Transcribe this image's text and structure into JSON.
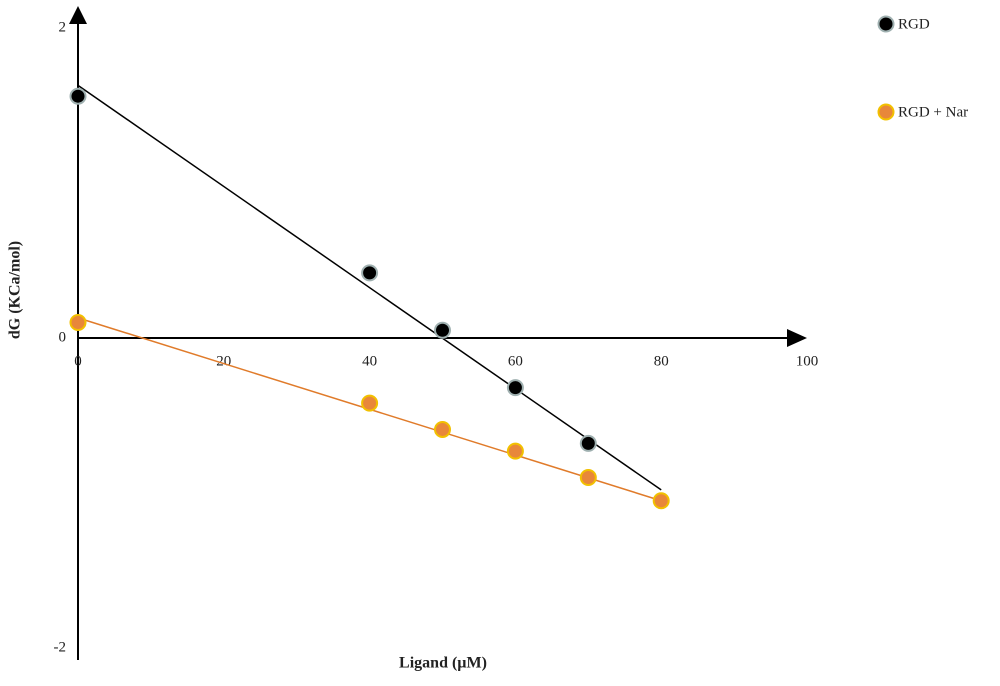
{
  "chart_data": {
    "type": "scatter",
    "x_label": "Ligand (µM)",
    "y_label": "dG (KCa/mol)",
    "xlim": [
      0,
      100
    ],
    "ylim": [
      -2,
      2
    ],
    "xticks": [
      0,
      20,
      40,
      60,
      80,
      100
    ],
    "yticks": [
      -2,
      0,
      2
    ],
    "series": [
      {
        "name": "RGD",
        "color": "#000000",
        "edge": "#9fb0b0",
        "x": [
          0,
          40,
          50,
          60,
          70
        ],
        "values": [
          1.56,
          0.42,
          0.05,
          -0.32,
          -0.68
        ],
        "fit": {
          "x": [
            0,
            80
          ],
          "y": [
            1.63,
            -0.98
          ]
        }
      },
      {
        "name": "RGD + Nar",
        "color": "#e8873a",
        "edge": "#f2c000",
        "x": [
          0,
          40,
          50,
          60,
          70,
          80
        ],
        "values": [
          0.1,
          -0.42,
          -0.59,
          -0.73,
          -0.9,
          -1.05
        ],
        "fit": {
          "x": [
            0,
            80
          ],
          "y": [
            0.13,
            -1.05
          ]
        },
        "fit_color": "#e07b2a"
      }
    ]
  }
}
